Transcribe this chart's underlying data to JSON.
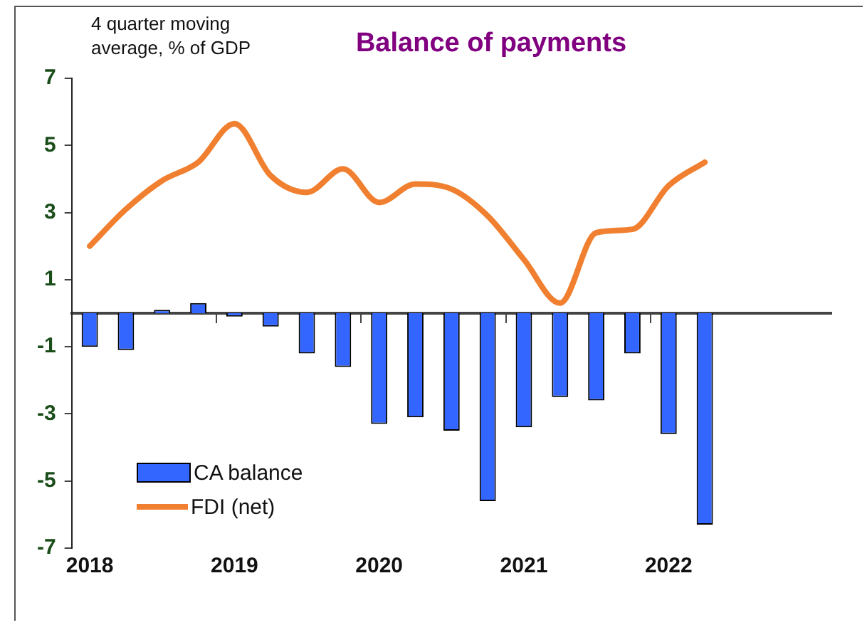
{
  "chart_data": {
    "type": "bar",
    "title": "Balance of payments",
    "ylabel": "4 quarter moving average, % of GDP",
    "categories": [
      "2018",
      null,
      null,
      null,
      "2019",
      null,
      null,
      null,
      "2020",
      null,
      null,
      null,
      "2021",
      null,
      null,
      null,
      "2022",
      null,
      null,
      null,
      null
    ],
    "series": [
      {
        "name": "CA balance",
        "type": "bar",
        "color": "#3366ff",
        "values": [
          -1.0,
          -1.1,
          0.1,
          0.3,
          -0.1,
          -0.4,
          -1.2,
          -1.6,
          -3.3,
          -3.1,
          -3.5,
          -5.6,
          -3.4,
          -2.5,
          -2.6,
          -1.2,
          -3.6,
          -6.3,
          null,
          null,
          null
        ]
      },
      {
        "name": "FDI (net)",
        "type": "line",
        "color": "#f08030",
        "values": [
          2.0,
          3.1,
          3.95,
          4.5,
          5.65,
          4.1,
          3.6,
          4.3,
          3.3,
          3.85,
          3.7,
          2.9,
          1.6,
          0.3,
          2.4,
          2.5,
          3.8,
          4.5,
          null,
          null,
          null
        ]
      }
    ],
    "ylim": [
      -7,
      7
    ],
    "yticks": [
      -7,
      -5,
      -3,
      -1,
      1,
      3,
      5,
      7
    ],
    "grid": false,
    "legend": "bottom left"
  }
}
